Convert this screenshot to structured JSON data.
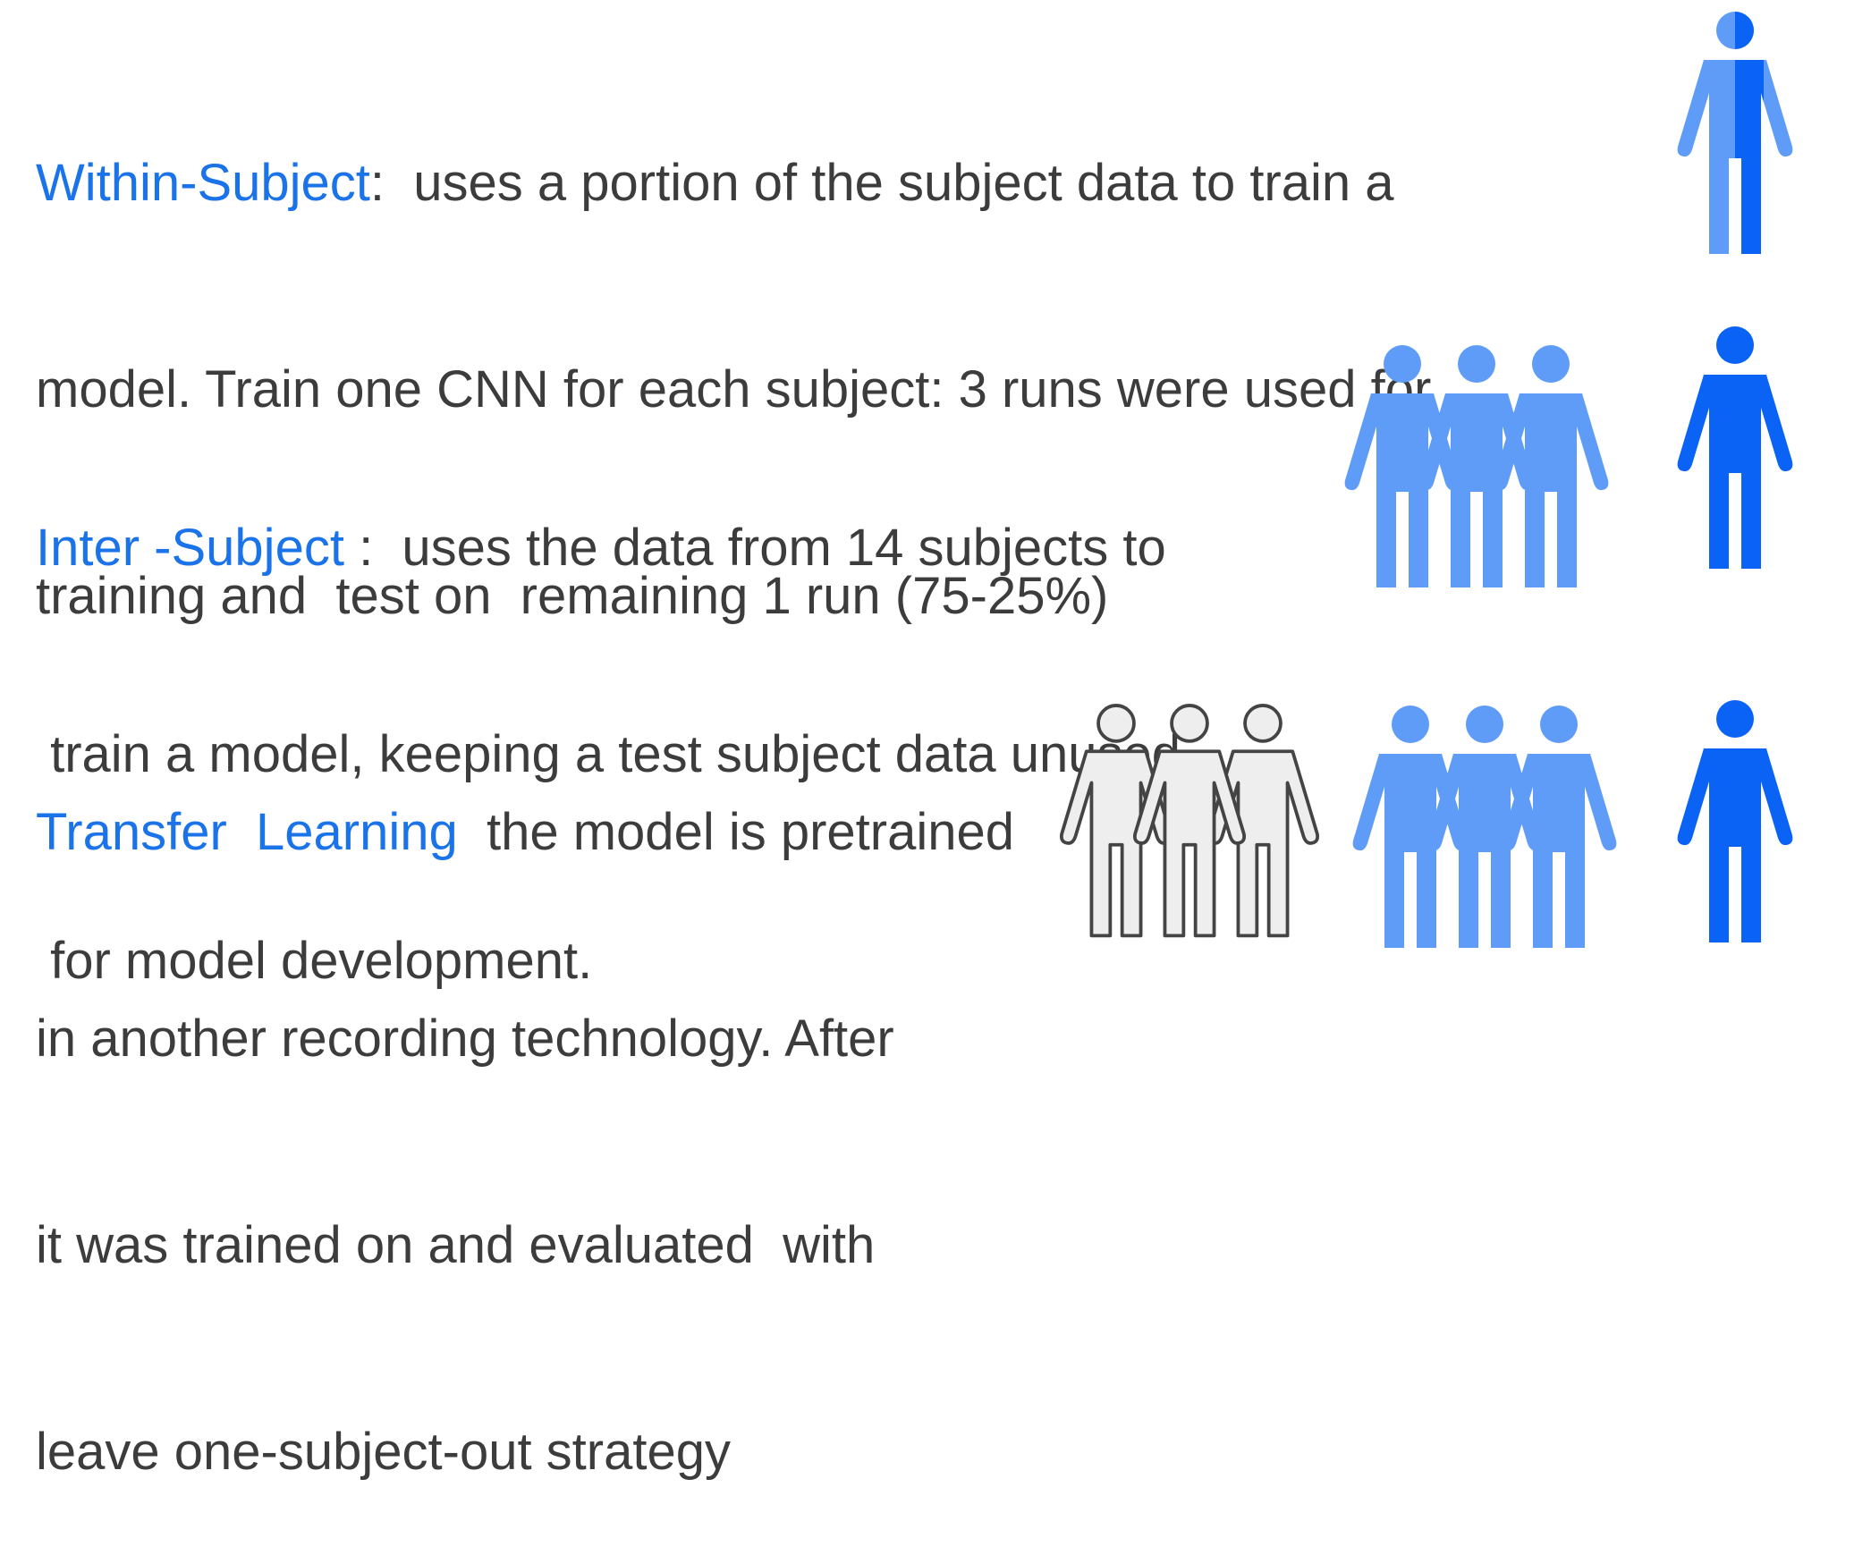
{
  "colors": {
    "term_blue": "#1a73e8",
    "text_gray": "#3c3c3c",
    "person_light": "#5e9cf8",
    "person_dark": "#0b63f6",
    "person_outline": "#444444",
    "person_outline_fill": "#eeeeee"
  },
  "within": {
    "term": "Within-Subject",
    "line1_rest": ":  uses a portion of the subject data to train a",
    "line2": "model. Train one CNN for each subject: 3 runs were used for",
    "line3": "training and  test on  remaining 1 run (75-25%)"
  },
  "inter": {
    "term": "Inter -Subject",
    "line1_rest": " :  uses the data from 14 subjects to",
    "line2": " train a model, keeping a test subject data unused",
    "line3": " for model development."
  },
  "transfer": {
    "term": "Transfer  Learning",
    "line1_rest": "  the model is pretrained",
    "line2": "in another recording technology. After",
    "line3": "it was trained on and evaluated  with",
    "line4": "leave one-subject-out strategy"
  },
  "icons": {
    "within_person": "half-shaded-person-icon",
    "training_group": "group-of-three-people-icon",
    "test_person": "single-person-icon",
    "pretrain_group": "outlined-group-of-three-people-icon"
  }
}
